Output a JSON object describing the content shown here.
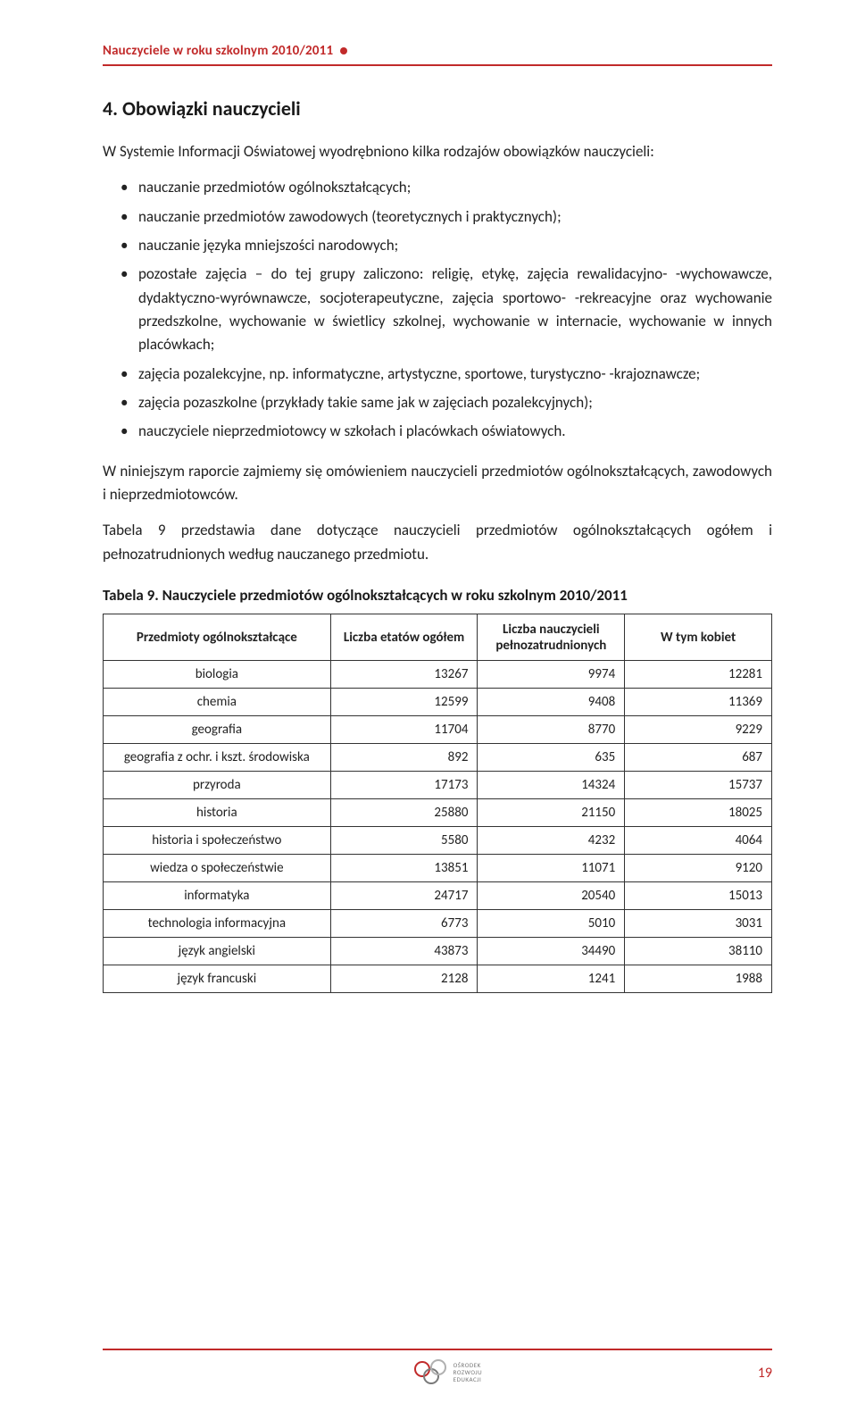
{
  "header": {
    "running_title": "Nauczyciele w roku szkolnym 2010/2011"
  },
  "section": {
    "title": "4. Obowiązki nauczycieli",
    "intro": "W Systemie Informacji Oświatowej wyodrębniono kilka rodzajów obowiązków nauczycieli:",
    "bullets": [
      "nauczanie przedmiotów ogólnokształcących;",
      "nauczanie przedmiotów zawodowych (teoretycznych i praktycznych);",
      "nauczanie języka mniejszości narodowych;",
      "pozostałe zajęcia – do tej grupy zaliczono: religię, etykę, zajęcia rewalidacyjno- -wychowawcze, dydaktyczno-wyrównawcze, socjoterapeutyczne, zajęcia sportowo- -rekreacyjne oraz wychowanie przedszkolne, wychowanie w świetlicy szkolnej, wychowanie w internacie, wychowanie w innych placówkach;",
      "zajęcia pozalekcyjne, np. informatyczne, artystyczne, sportowe, turystyczno- -krajoznawcze;",
      "zajęcia pozaszkolne (przykłady takie same jak w zajęciach pozalekcyjnych);",
      "nauczyciele nieprzedmiotowcy w szkołach i placówkach oświatowych."
    ],
    "para1": "W niniejszym raporcie zajmiemy się omówieniem nauczycieli przedmiotów ogólnokształcących, zawodowych i nieprzedmiotowców.",
    "para2": "Tabela 9 przedstawia dane dotyczące nauczycieli przedmiotów ogólnokształcących ogółem i pełnozatrudnionych według nauczanego przedmiotu."
  },
  "table": {
    "caption": "Tabela 9. Nauczyciele przedmiotów ogólnokształcących w roku szkolnym 2010/2011",
    "columns": [
      "Przedmioty ogólnokształcące",
      "Liczba etatów ogółem",
      "Liczba nauczycieli pełnozatrudnionych",
      "W tym kobiet"
    ],
    "rows": [
      [
        "biologia",
        "13267",
        "9974",
        "12281"
      ],
      [
        "chemia",
        "12599",
        "9408",
        "11369"
      ],
      [
        "geografia",
        "11704",
        "8770",
        "9229"
      ],
      [
        "geografia z ochr. i kszt. środowiska",
        "892",
        "635",
        "687"
      ],
      [
        "przyroda",
        "17173",
        "14324",
        "15737"
      ],
      [
        "historia",
        "25880",
        "21150",
        "18025"
      ],
      [
        "historia i społeczeństwo",
        "5580",
        "4232",
        "4064"
      ],
      [
        "wiedza o społeczeństwie",
        "13851",
        "11071",
        "9120"
      ],
      [
        "informatyka",
        "24717",
        "20540",
        "15013"
      ],
      [
        "technologia informacyjna",
        "6773",
        "5010",
        "3031"
      ],
      [
        "język angielski",
        "43873",
        "34490",
        "38110"
      ],
      [
        "język francuski",
        "2128",
        "1241",
        "1988"
      ]
    ]
  },
  "footer": {
    "logo_lines": [
      "OŚRODEK",
      "ROZWOJU",
      "EDUKACJI"
    ],
    "page_number": "19"
  },
  "colors": {
    "accent": "#c12a2a",
    "text": "#222222",
    "bg": "#ffffff"
  }
}
